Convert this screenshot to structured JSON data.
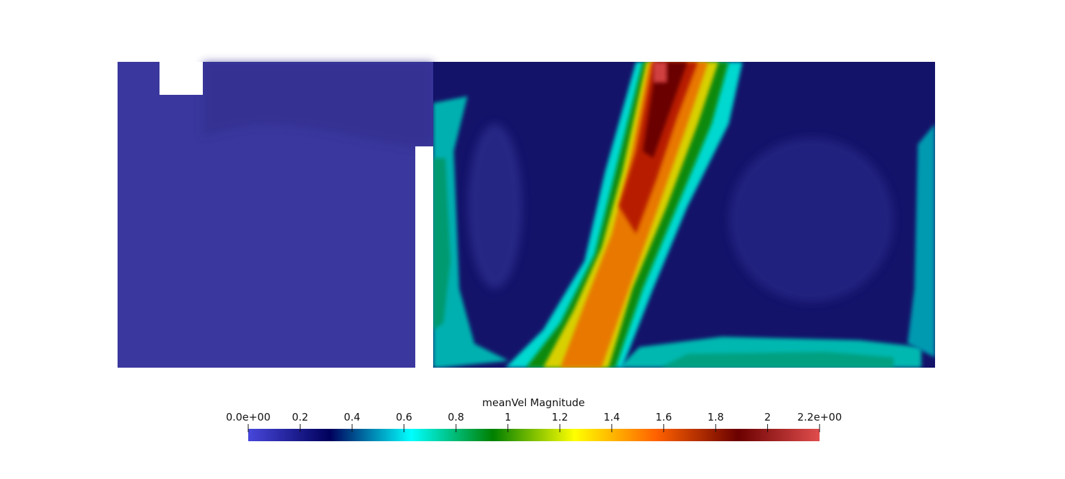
{
  "chart_data": {
    "type": "heatmap",
    "title": "",
    "field": "meanVel Magnitude",
    "colorbar": {
      "title": "meanVel Magnitude",
      "range": [
        0,
        2.2
      ],
      "tick_values": [
        0,
        0.2,
        0.4,
        0.6,
        0.8,
        1,
        1.2,
        1.4,
        1.6,
        1.8,
        2,
        2.2
      ],
      "tick_labels": [
        "0.0e+00",
        "0.2",
        "0.4",
        "0.6",
        "0.8",
        "1",
        "1.2",
        "1.4",
        "1.6",
        "1.8",
        "2",
        "2.2e+00"
      ],
      "placement": "bottom",
      "colormap": [
        {
          "value": 0.0,
          "color": "#4747db"
        },
        {
          "value": 0.314,
          "color": "#00005c"
        },
        {
          "value": 0.627,
          "color": "#00ffff"
        },
        {
          "value": 0.943,
          "color": "#008000"
        },
        {
          "value": 1.257,
          "color": "#ffff00"
        },
        {
          "value": 1.571,
          "color": "#ff6100"
        },
        {
          "value": 1.886,
          "color": "#6b0000"
        },
        {
          "value": 2.2,
          "color": "#e04d4d"
        }
      ]
    },
    "regions": {
      "left_chamber_value_approx": 0.05,
      "jet_core_max_approx": 2.2,
      "right_chamber_background_approx": 0.25
    }
  }
}
